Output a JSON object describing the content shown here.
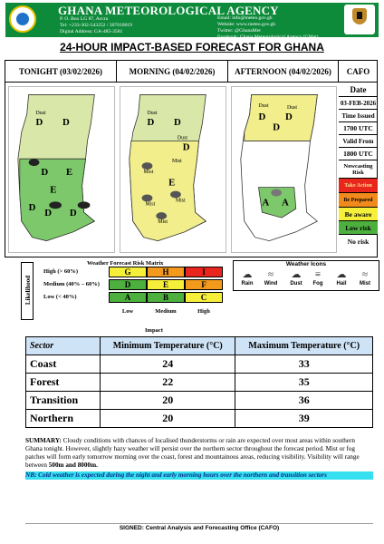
{
  "header": {
    "agency": "GHANA METEOROLOGICAL AGENCY",
    "address_lines": [
      "P. O. Box LG 87, Accra",
      "Tel: +233-302-543252 / 307010019",
      "Digital Address: GA-485-3581"
    ],
    "contact_lines": [
      "Email: info@meteo.gov.gh",
      "Website: www.meteo.gov.gh",
      "Twitter: @GhanaMet",
      "Facebook: Ghana Meteorological Agency (GMet)"
    ]
  },
  "headline": "24-HOUR IMPACT-BASED FORECAST FOR GHANA",
  "columns": {
    "tonight": "TONIGHT (03/02/2026)",
    "morning": "MORNING (04/02/2026)",
    "afternoon": "AFTERNOON (04/02/2026)",
    "cafo": "CAFO"
  },
  "maps": {
    "tonight": [
      "Dust",
      "D",
      "D",
      "D",
      "E",
      "E",
      "D",
      "D",
      "D"
    ],
    "morning": [
      "Dust",
      "D",
      "D",
      "Dust",
      "D",
      "E",
      "Mist",
      "Mist",
      "Mist",
      "Mist",
      "Mist"
    ],
    "afternoon": [
      "Dust",
      "D",
      "D",
      "D",
      "Dust",
      "A",
      "A"
    ]
  },
  "side": {
    "date_label": "Date",
    "date_value": "03-FEB-2026",
    "time_issued_label": "Time Issued",
    "time_issued_value": "1700 UTC",
    "valid_from_label": "Valid From",
    "valid_from_value": "1800 UTC",
    "nowcasting_label": "Nowcasting Risk",
    "legend": [
      {
        "label": "Take Action",
        "bg": "#e8261e",
        "fg": "#f7e08a"
      },
      {
        "label": "Be Prepared",
        "bg": "#f18a1c",
        "fg": "#000000"
      },
      {
        "label": "Be aware",
        "bg": "#f6f03a",
        "fg": "#000000"
      },
      {
        "label": "Low risk",
        "bg": "#4caf3e",
        "fg": "#000000"
      },
      {
        "label": "No risk",
        "bg": "#ffffff",
        "fg": "#000000"
      }
    ]
  },
  "matrix": {
    "title": "Weather Forecast Risk Matrix",
    "likelihood_label": "Likelihood",
    "impact_label": "Impact",
    "rows": [
      "High (> 60%)",
      "Medium (40% – 60%)",
      "Low (< 40%)"
    ],
    "cells": [
      [
        {
          "t": "G",
          "c": "#f6ef3a"
        },
        {
          "t": "H",
          "c": "#f39a1c"
        },
        {
          "t": "I",
          "c": "#e8261e"
        }
      ],
      [
        {
          "t": "D",
          "c": "#4caf3e"
        },
        {
          "t": "E",
          "c": "#f6ef3a"
        },
        {
          "t": "F",
          "c": "#f39a1c"
        }
      ],
      [
        {
          "t": "A",
          "c": "#4caf3e"
        },
        {
          "t": "B",
          "c": "#4caf3e"
        },
        {
          "t": "C",
          "c": "#f6ef3a"
        }
      ]
    ],
    "cols": [
      "Low",
      "Medium",
      "High"
    ]
  },
  "weather_icons": {
    "title": "Weather Icons",
    "items": [
      {
        "name": "rain",
        "glyph": "☁",
        "label": "Rain"
      },
      {
        "name": "wind",
        "glyph": "≈",
        "label": "Wind"
      },
      {
        "name": "dust",
        "glyph": "☁",
        "label": "Dust"
      },
      {
        "name": "fog",
        "glyph": "≡",
        "label": "Fog"
      },
      {
        "name": "hail",
        "glyph": "☁",
        "label": "Hail"
      },
      {
        "name": "mist",
        "glyph": "≈",
        "label": "Mist"
      }
    ]
  },
  "temperature": {
    "headers": [
      "Sector",
      "Minimum Temperature (°C)",
      "Maximum Temperature (°C)"
    ],
    "rows": [
      {
        "sector": "Coast",
        "min": "24",
        "max": "33"
      },
      {
        "sector": "Forest",
        "min": "22",
        "max": "35"
      },
      {
        "sector": "Transition",
        "min": "20",
        "max": "36"
      },
      {
        "sector": "Northern",
        "min": "20",
        "max": "39"
      }
    ]
  },
  "summary": {
    "label": "SUMMARY:",
    "text": " Cloudy conditions with chances of localised thunderstorms or rain are expected over most areas within southern Ghana tonight. However, slightly hazy weather will persist over the northern sector throughout the forecast period. Mist or fog patches will form early tomorrow morning over the coast, forest and mountainous areas, reducing visibility. Visibility will range between ",
    "vis_range": "500m and 8000m.",
    "note": "NB: Cold weather is expected during the night and early morning hours over the northern and transition sectors"
  },
  "signed": "SIGNED: Central Analysis and Forecasting Office (CAFO)",
  "colors": {
    "banner": "#0d8a3a",
    "map_north": "#d9e8a8",
    "map_mid": "#f2ee8c",
    "map_south": "#7cc86a",
    "table_header": "#cfe3f6",
    "note_bg": "#36e0f0"
  }
}
